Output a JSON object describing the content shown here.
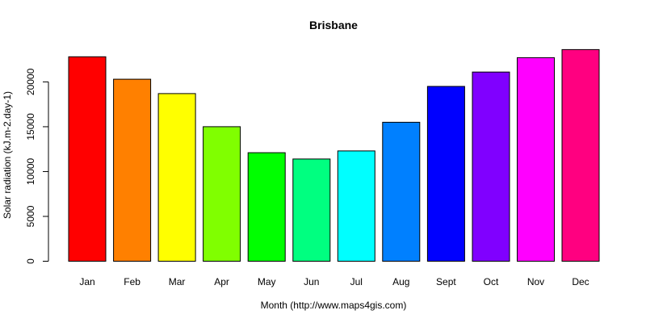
{
  "chart_data": {
    "type": "bar",
    "title": "Brisbane",
    "xlabel": "Month (http://www.maps4gis.com)",
    "ylabel": "Solar radiation (kJ.m-2.day-1)",
    "categories": [
      "Jan",
      "Feb",
      "Mar",
      "Apr",
      "May",
      "Jun",
      "Jul",
      "Aug",
      "Sept",
      "Oct",
      "Nov",
      "Dec"
    ],
    "values": [
      22800,
      20300,
      18700,
      15000,
      12100,
      11400,
      12300,
      15500,
      19500,
      21100,
      22700,
      23600
    ],
    "colors": [
      "#ff0000",
      "#ff8000",
      "#ffff00",
      "#80ff00",
      "#00ff00",
      "#00ff80",
      "#00ffff",
      "#0080ff",
      "#0000ff",
      "#8000ff",
      "#ff00ff",
      "#ff0080"
    ],
    "yticks": [
      0,
      5000,
      10000,
      15000,
      20000
    ],
    "ylim": [
      0,
      24500
    ],
    "grid": false,
    "legend": "none"
  }
}
